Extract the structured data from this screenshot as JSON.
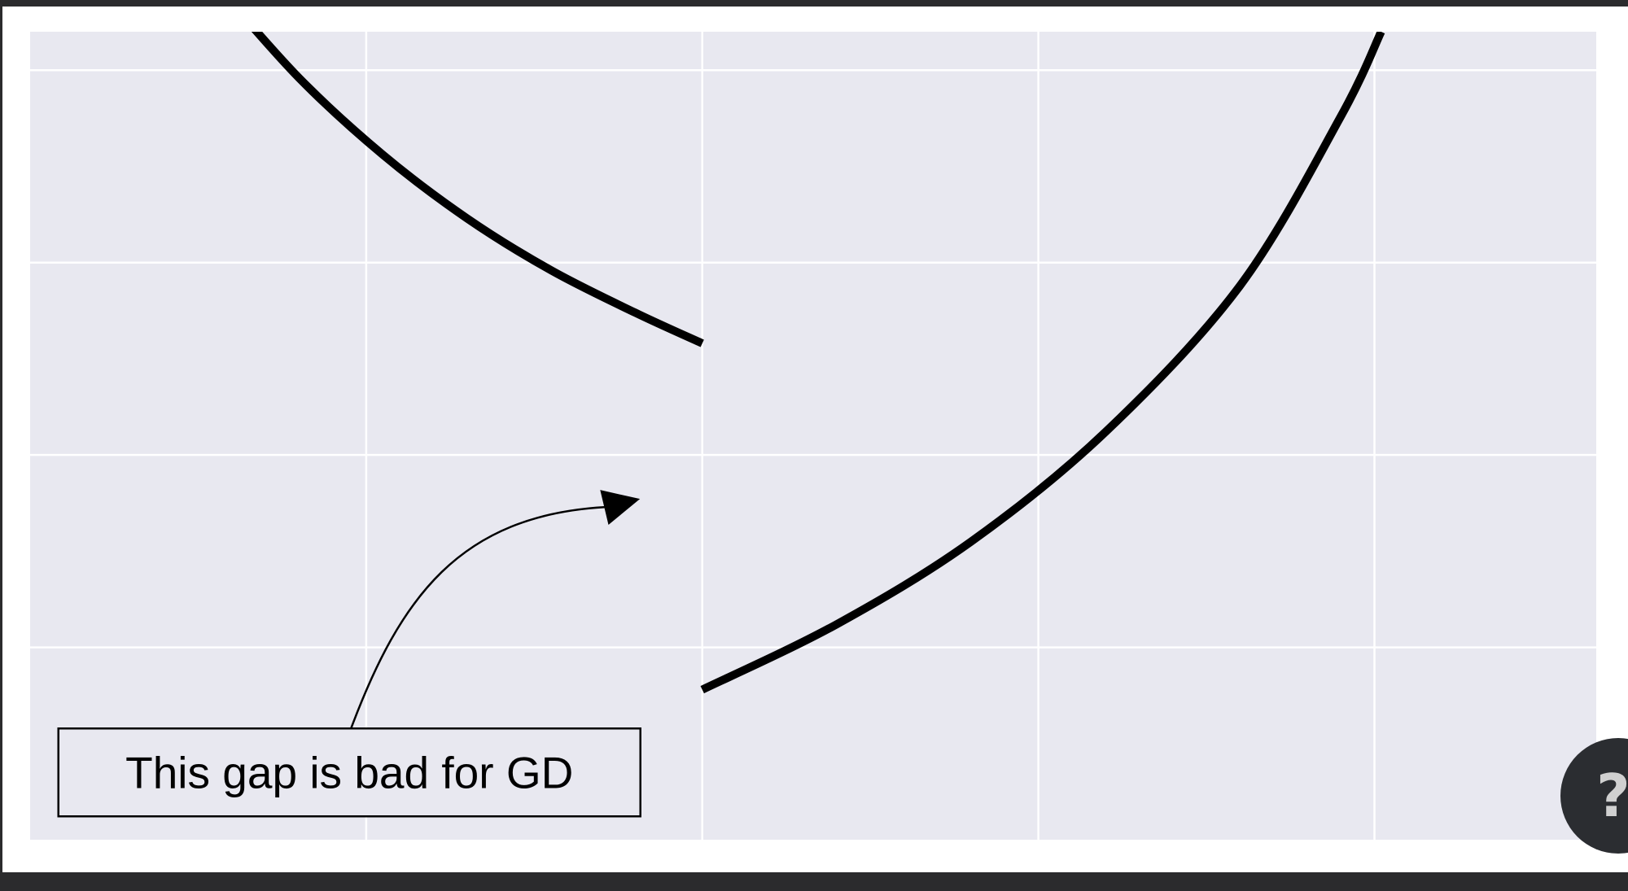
{
  "chart_data": {
    "type": "line",
    "title": "",
    "xlabel": "",
    "ylabel": "",
    "xlim": [
      0,
      4.66
    ],
    "ylim": [
      0,
      4.2
    ],
    "grid": true,
    "x_grid": [
      1,
      2,
      3,
      4
    ],
    "y_grid": [
      1,
      2,
      3,
      4
    ],
    "background": "#e8e8f0",
    "grid_color": "#ffffff",
    "line_color": "#000000",
    "series": [
      {
        "x": [
          0.55,
          0.8,
          1.05,
          1.3,
          1.55,
          1.8,
          2.0
        ],
        "y": [
          4.45,
          3.96,
          3.56,
          3.23,
          2.96,
          2.74,
          2.58
        ]
      },
      {
        "x": [
          2.0,
          2.4,
          2.8,
          3.2,
          3.6,
          3.9,
          4.02
        ],
        "y": [
          0.78,
          1.12,
          1.55,
          2.12,
          2.88,
          3.76,
          4.2
        ]
      }
    ],
    "annotation": {
      "text": "This gap is bad for GD",
      "xy": [
        1.8,
        1.78
      ],
      "text_position": [
        0.95,
        0.35
      ],
      "arrow": "curved"
    }
  },
  "help_button": {
    "label": "?"
  }
}
